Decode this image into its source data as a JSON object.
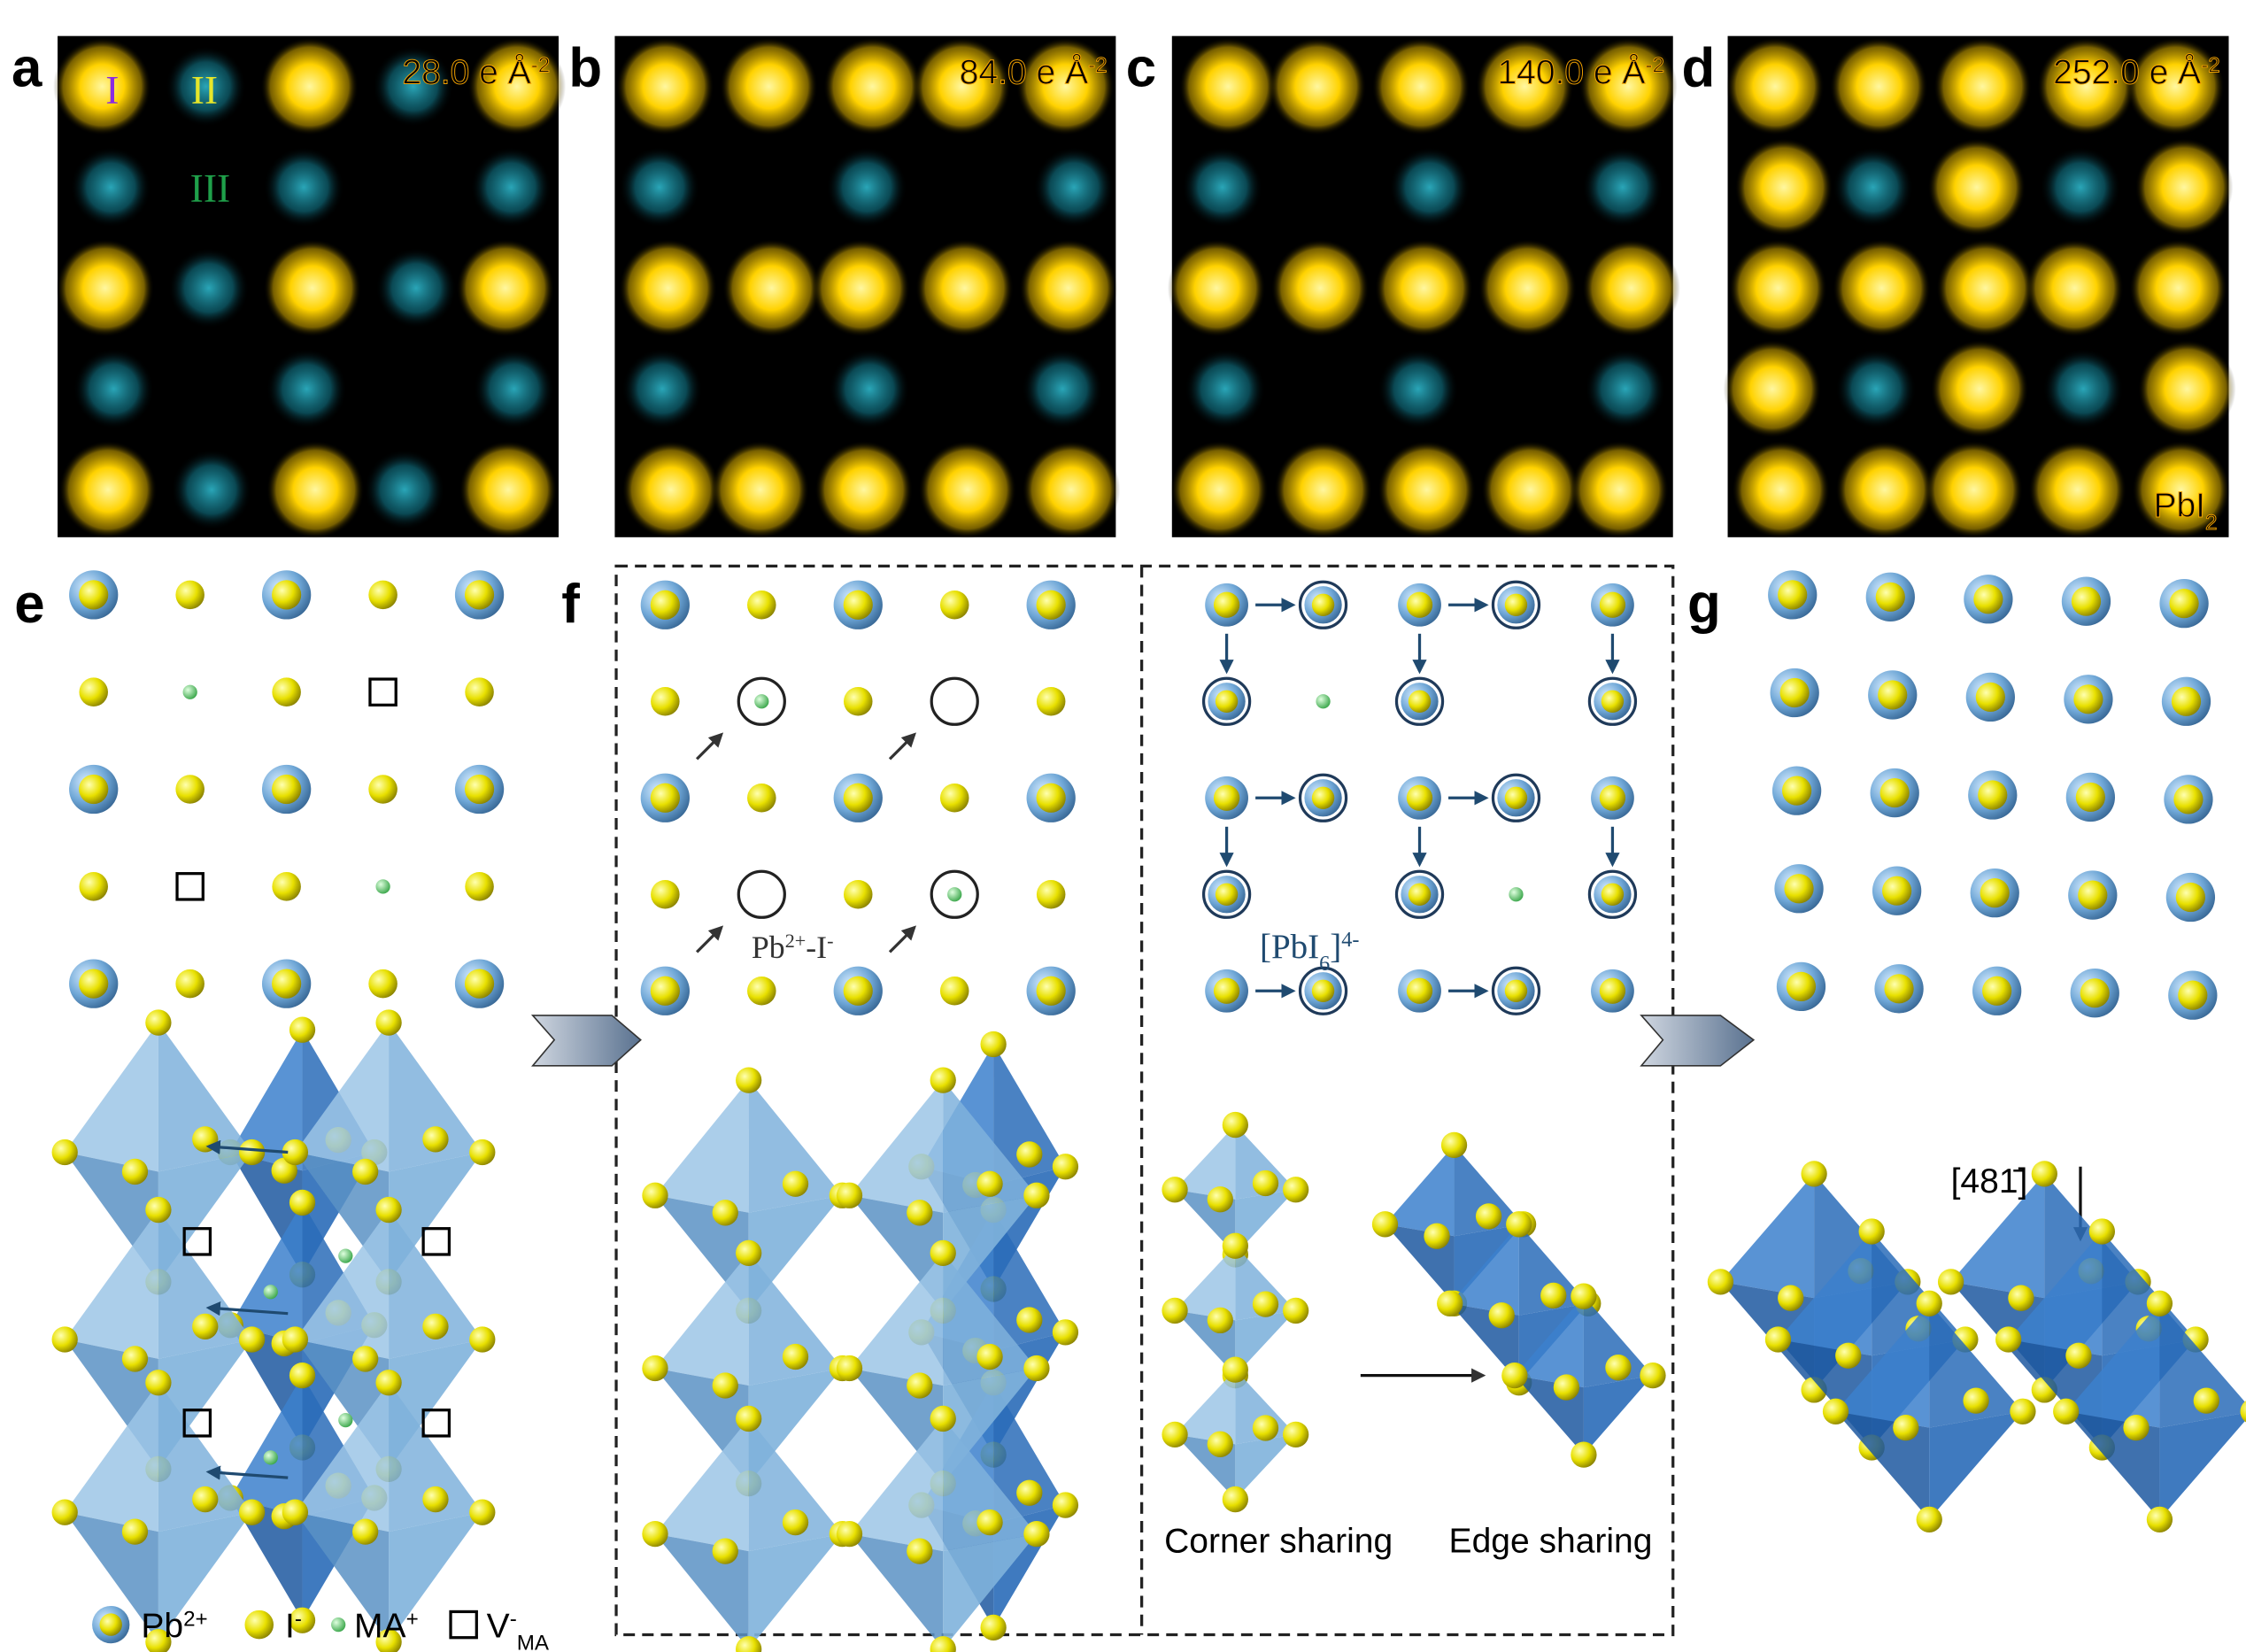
{
  "panels": [
    {
      "label": "a",
      "dose": [
        {
          "t": "28.0 e Å"
        },
        {
          "t": "-2",
          "s": "sup"
        }
      ]
    },
    {
      "label": "b",
      "dose": [
        {
          "t": "84.0 e Å"
        },
        {
          "t": "-2",
          "s": "sup"
        }
      ]
    },
    {
      "label": "c",
      "dose": [
        {
          "t": "140.0 e Å"
        },
        {
          "t": "-2",
          "s": "sup"
        }
      ]
    },
    {
      "label": "d",
      "dose": [
        {
          "t": "252.0 e Å"
        },
        {
          "t": "-2",
          "s": "sup"
        }
      ],
      "note": [
        {
          "t": "PbI"
        },
        {
          "t": "2",
          "s": "sub"
        }
      ]
    }
  ],
  "sites": [
    {
      "t": "I",
      "color": "#8a2be2"
    },
    {
      "t": "II",
      "color": "#e6e62a"
    },
    {
      "t": "III",
      "color": "#1fa04a"
    }
  ],
  "lower_labels": [
    "e",
    "f",
    "g"
  ],
  "pair_label": [
    {
      "t": "Pb"
    },
    {
      "t": "2+",
      "s": "sup"
    },
    {
      "t": "-I"
    },
    {
      "t": "-",
      "s": "sup"
    }
  ],
  "cluster_label": [
    {
      "t": "[PbI"
    },
    {
      "t": "6",
      "s": "sub"
    },
    {
      "t": "]"
    },
    {
      "t": "4-",
      "s": "sup"
    }
  ],
  "corner": "Corner sharing",
  "edge": "Edge sharing",
  "direction": "[481̄]",
  "legend": [
    [
      {
        "t": "Pb"
      },
      {
        "t": "2+",
        "s": "sup"
      }
    ],
    [
      {
        "t": "I"
      },
      {
        "t": "-",
        "s": "sup"
      }
    ],
    [
      {
        "t": "MA"
      },
      {
        "t": "+",
        "s": "sup"
      }
    ],
    [
      {
        "t": "V"
      },
      {
        "t": "-",
        "s": "sup"
      },
      {
        "t": "MA",
        "s": "sub"
      }
    ]
  ]
}
